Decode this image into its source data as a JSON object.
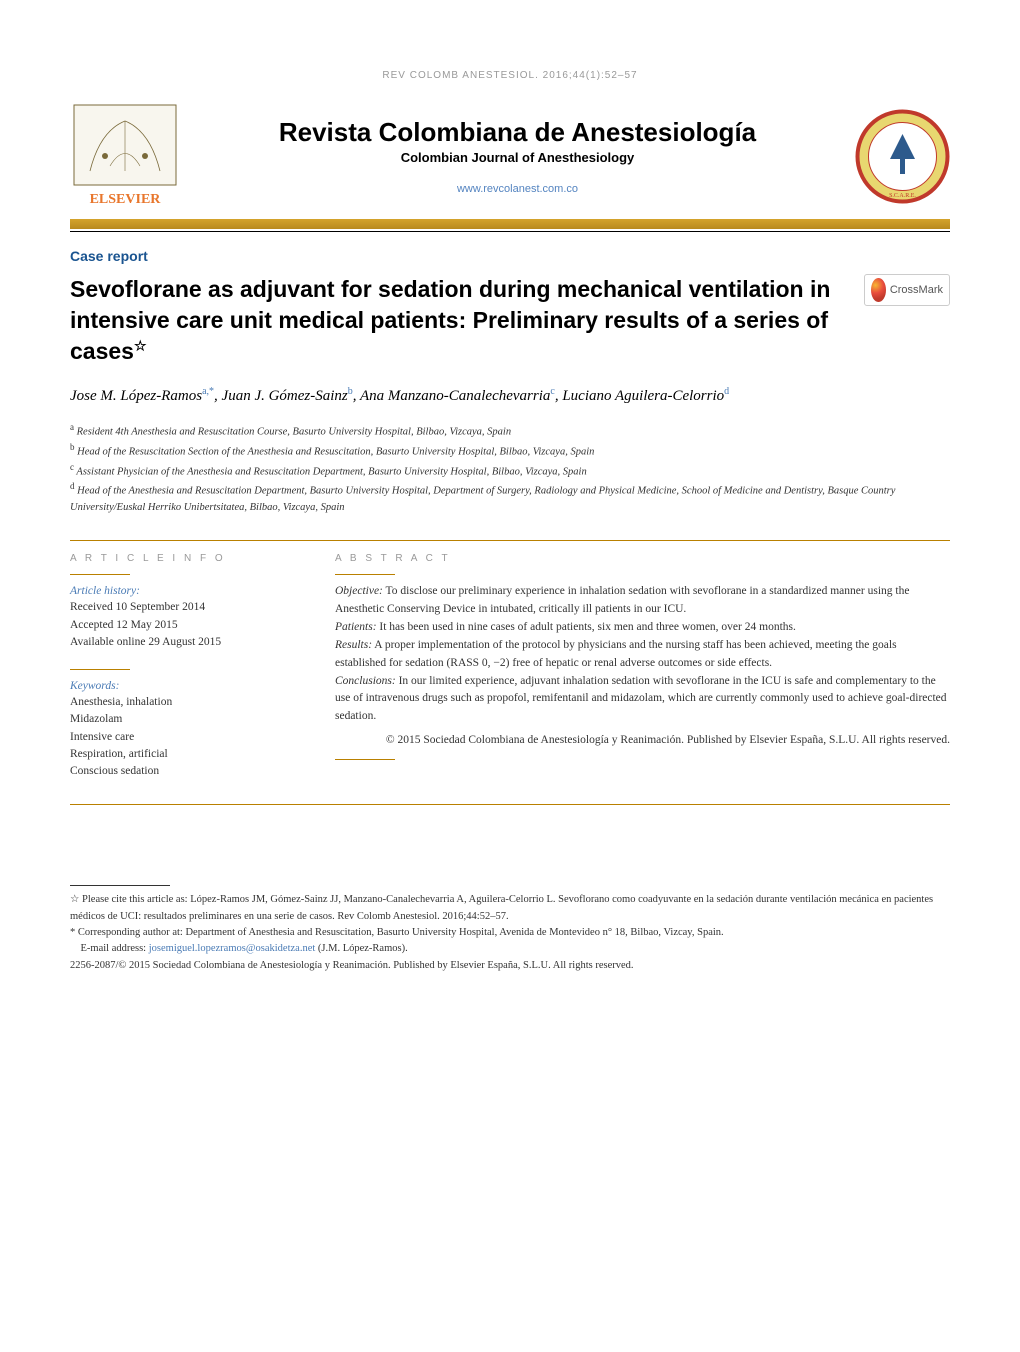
{
  "running_header": "REV COLOMB ANESTESIOL. 2016;44(1):52–57",
  "journal": {
    "title": "Revista Colombiana de Anestesiología",
    "subtitle": "Colombian Journal of Anesthesiology",
    "url": "www.revcolanest.com.co",
    "publisher_name": "ELSEVIER"
  },
  "section_label": "Case report",
  "article": {
    "title": "Sevoflorane as adjuvant for sedation during mechanical ventilation in intensive care unit medical patients: Preliminary results of a series of cases",
    "title_note_symbol": "☆",
    "crossmark_label": "CrossMark"
  },
  "authors_line": "Jose M. López-Ramos<sup>a,*</sup>, Juan J. Gómez-Sainz<sup>b</sup>, Ana Manzano-Canalechevarria<sup>c</sup>, Luciano Aguilera-Celorrio<sup>d</sup>",
  "affiliations": [
    {
      "label": "a",
      "text": "Resident 4th Anesthesia and Resuscitation Course, Basurto University Hospital, Bilbao, Vizcaya, Spain"
    },
    {
      "label": "b",
      "text": "Head of the Resuscitation Section of the Anesthesia and Resuscitation, Basurto University Hospital, Bilbao, Vizcaya, Spain"
    },
    {
      "label": "c",
      "text": "Assistant Physician of the Anesthesia and Resuscitation Department, Basurto University Hospital, Bilbao, Vizcaya, Spain"
    },
    {
      "label": "d",
      "text": "Head of the Anesthesia and Resuscitation Department, Basurto University Hospital, Department of Surgery, Radiology and Physical Medicine, School of Medicine and Dentistry, Basque Country University/Euskal Herriko Unibertsitatea, Bilbao, Vizcaya, Spain"
    }
  ],
  "article_info": {
    "header": "A R T I C L E   I N F O",
    "history_label": "Article history:",
    "history": [
      "Received 10 September 2014",
      "Accepted 12 May 2015",
      "Available online 29 August 2015"
    ],
    "keywords_label": "Keywords:",
    "keywords": [
      "Anesthesia, inhalation",
      "Midazolam",
      "Intensive care",
      "Respiration, artificial",
      "Conscious sedation"
    ]
  },
  "abstract": {
    "header": "A B S T R A C T",
    "sections": [
      {
        "label": "Objective:",
        "text": " To disclose our preliminary experience in inhalation sedation with sevoflorane in a standardized manner using the Anesthetic Conserving Device in intubated, critically ill patients in our ICU."
      },
      {
        "label": "Patients:",
        "text": " It has been used in nine cases of adult patients, six men and three women, over 24 months."
      },
      {
        "label": "Results:",
        "text": " A proper implementation of the protocol by physicians and the nursing staff has been achieved, meeting the goals established for sedation (RASS 0, −2) free of hepatic or renal adverse outcomes or side effects."
      },
      {
        "label": "Conclusions:",
        "text": " In our limited experience, adjuvant inhalation sedation with sevoflorane in the ICU is safe and complementary to the use of intravenous drugs such as propofol, remifentanil and midazolam, which are currently commonly used to achieve goal-directed sedation."
      }
    ],
    "copyright": "© 2015 Sociedad Colombiana de Anestesiología y Reanimación. Published by Elsevier España, S.L.U. All rights reserved."
  },
  "footnotes": {
    "citation": "☆ Please cite this article as: López-Ramos JM, Gómez-Sainz JJ, Manzano-Canalechevarria A, Aguilera-Celorrio L. Sevoflorano como coadyuvante en la sedación durante ventilación mecánica en pacientes médicos de UCI: resultados preliminares en una serie de casos. Rev Colomb Anestesiol. 2016;44:52–57.",
    "corresponding": "* Corresponding author at: Department of Anesthesia and Resuscitation, Basurto University Hospital, Avenida de Montevideo n° 18, Bilbao, Vizcay, Spain.",
    "email_label": "E-mail address: ",
    "email": "josemiguel.lopezramos@osakidetza.net",
    "email_name": " (J.M. López-Ramos).",
    "issn": "2256-2087/© 2015 Sociedad Colombiana de Anestesiología y Reanimación. Published by Elsevier España, S.L.U. All rights reserved."
  },
  "colors": {
    "link": "#4a7bb5",
    "gold": "#b98000",
    "section_blue": "#1a5490"
  }
}
